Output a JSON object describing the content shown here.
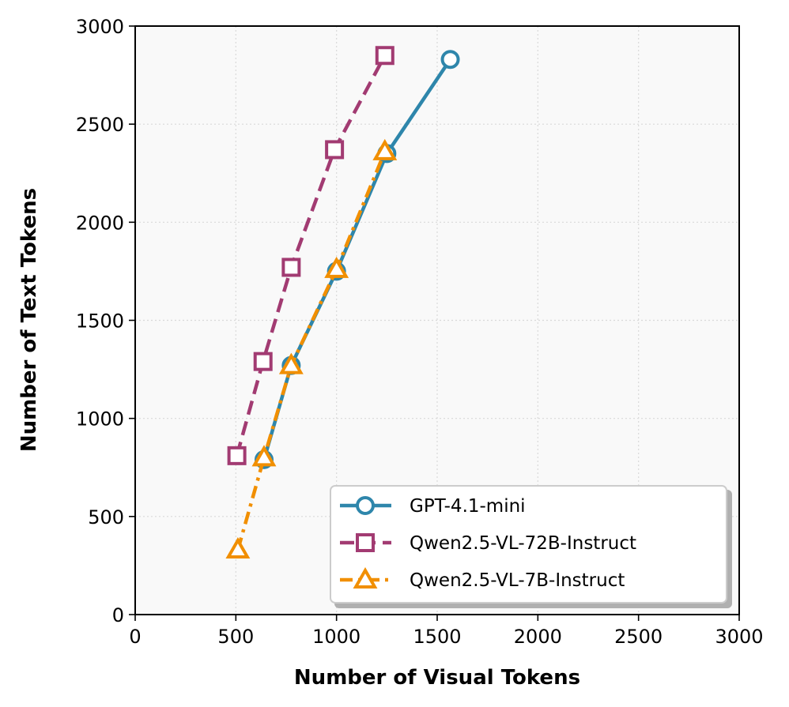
{
  "chart_data": {
    "type": "line",
    "title": "",
    "xlabel": "Number of Visual Tokens",
    "ylabel": "Number of Text Tokens",
    "xlim": [
      0,
      3000
    ],
    "ylim": [
      0,
      3000
    ],
    "xticks": [
      0,
      500,
      1000,
      1500,
      2000,
      2500,
      3000
    ],
    "yticks": [
      0,
      500,
      1000,
      1500,
      2000,
      2500,
      3000
    ],
    "xtick_labels": [
      "0",
      "500",
      "1000",
      "1500",
      "2000",
      "2500",
      "3000"
    ],
    "ytick_labels": [
      "0",
      "500",
      "1000",
      "1500",
      "2000",
      "2500",
      "3000"
    ],
    "grid": true,
    "legend_position": "lower-right",
    "series": [
      {
        "name": "GPT-4.1-mini",
        "color": "#2e86ab",
        "marker": "circle",
        "line_style": "solid",
        "x": [
          640,
          775,
          1000,
          1250,
          1565
        ],
        "y": [
          790,
          1270,
          1750,
          2350,
          2830
        ]
      },
      {
        "name": "Qwen2.5-VL-72B-Instruct",
        "color": "#a23b72",
        "marker": "square",
        "line_style": "dashed",
        "x": [
          505,
          635,
          775,
          990,
          1240
        ],
        "y": [
          810,
          1290,
          1770,
          2370,
          2850
        ]
      },
      {
        "name": "Qwen2.5-VL-7B-Instruct",
        "color": "#f18f01",
        "marker": "triangle",
        "line_style": "dashdot",
        "x": [
          510,
          640,
          775,
          1000,
          1240
        ],
        "y": [
          330,
          800,
          1270,
          1760,
          2360
        ]
      }
    ]
  }
}
